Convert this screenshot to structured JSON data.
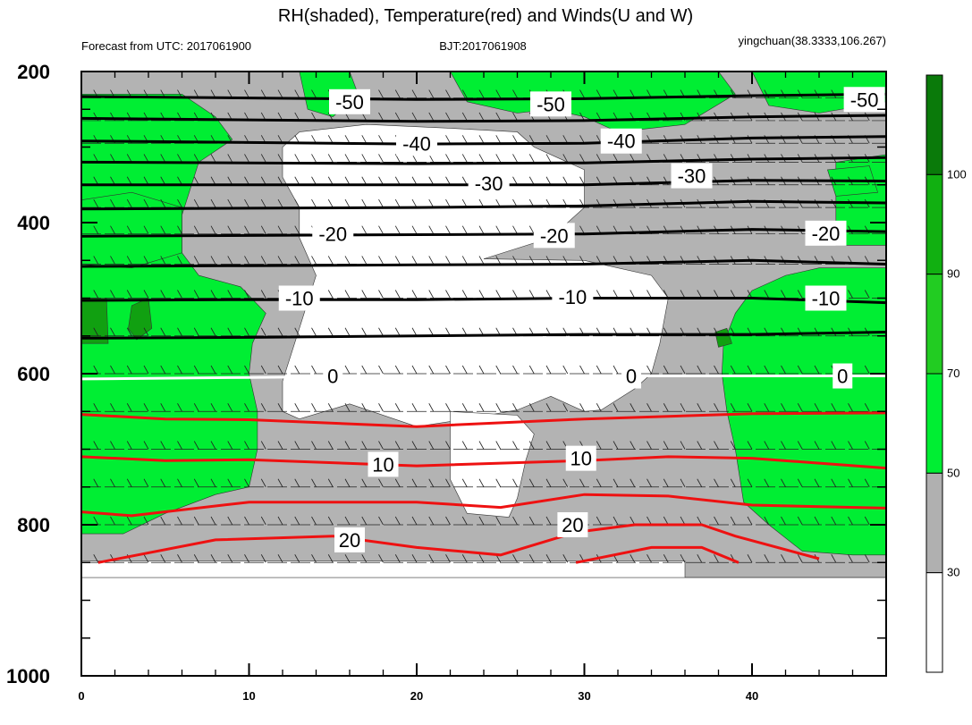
{
  "chart_data": {
    "type": "contour",
    "title": "RH(shaded), Temperature(red) and Winds(U and W)",
    "subtitle_left": "Forecast from UTC: 2017061900",
    "subtitle_center": "BJT:2017061908",
    "subtitle_right": "yingchuan(38.3333,106.267)",
    "x_range": [
      0,
      48
    ],
    "x_ticks": [
      "0",
      "10",
      "20",
      "30",
      "40"
    ],
    "y_range": [
      200,
      1000
    ],
    "y_reversed": true,
    "y_ticks": [
      "200",
      "400",
      "600",
      "800",
      "1000"
    ],
    "grid": false,
    "legend_position": "right",
    "colorbar": {
      "levels": [
        "30",
        "50",
        "70",
        "90",
        "100"
      ],
      "colors": [
        "#ffffff",
        "#b0b0b0",
        "#00ee33",
        "#22cc22",
        "#11b011",
        "#0a7a0a"
      ]
    },
    "temperature_labels": [
      {
        "text": "-50",
        "x": 16,
        "p": 240,
        "color": "#000000"
      },
      {
        "text": "-50",
        "x": 28,
        "p": 243,
        "color": "#000000"
      },
      {
        "text": "-50",
        "x": 46.7,
        "p": 237,
        "color": "#000000"
      },
      {
        "text": "-40",
        "x": 20,
        "p": 295,
        "color": "#000000"
      },
      {
        "text": "-40",
        "x": 32.2,
        "p": 292,
        "color": "#000000"
      },
      {
        "text": "-30",
        "x": 24.3,
        "p": 348,
        "color": "#000000"
      },
      {
        "text": "-30",
        "x": 36.4,
        "p": 338,
        "color": "#000000"
      },
      {
        "text": "-20",
        "x": 15,
        "p": 415,
        "color": "#000000"
      },
      {
        "text": "-20",
        "x": 28.2,
        "p": 417,
        "color": "#000000"
      },
      {
        "text": "-20",
        "x": 44.4,
        "p": 414,
        "color": "#000000"
      },
      {
        "text": "-10",
        "x": 13,
        "p": 500,
        "color": "#000000"
      },
      {
        "text": "-10",
        "x": 29.3,
        "p": 498,
        "color": "#000000"
      },
      {
        "text": "-10",
        "x": 44.4,
        "p": 500,
        "color": "#000000"
      },
      {
        "text": "0",
        "x": 15,
        "p": 603,
        "color": "#000000"
      },
      {
        "text": "0",
        "x": 32.8,
        "p": 603,
        "color": "#000000"
      },
      {
        "text": "0",
        "x": 45.4,
        "p": 603,
        "color": "#000000"
      },
      {
        "text": "10",
        "x": 18,
        "p": 720,
        "color": "#000000"
      },
      {
        "text": "10",
        "x": 29.8,
        "p": 712,
        "color": "#000000"
      },
      {
        "text": "20",
        "x": 16,
        "p": 820,
        "color": "#000000"
      },
      {
        "text": "20",
        "x": 29.3,
        "p": 800,
        "color": "#000000"
      }
    ],
    "isotherms_black": [
      {
        "level": -50,
        "points": [
          [
            0,
            233
          ],
          [
            10,
            235
          ],
          [
            20,
            237
          ],
          [
            30,
            236
          ],
          [
            40,
            232
          ],
          [
            48,
            230
          ]
        ]
      },
      {
        "level": -45,
        "points": [
          [
            0,
            262
          ],
          [
            10,
            264
          ],
          [
            20,
            266
          ],
          [
            30,
            265
          ],
          [
            40,
            260
          ],
          [
            48,
            258
          ]
        ]
      },
      {
        "level": -40,
        "points": [
          [
            0,
            292
          ],
          [
            10,
            294
          ],
          [
            20,
            296
          ],
          [
            30,
            295
          ],
          [
            40,
            288
          ],
          [
            48,
            286
          ]
        ]
      },
      {
        "level": -35,
        "points": [
          [
            0,
            320
          ],
          [
            10,
            321
          ],
          [
            20,
            322
          ],
          [
            30,
            321
          ],
          [
            40,
            316
          ],
          [
            48,
            314
          ]
        ]
      },
      {
        "level": -30,
        "points": [
          [
            0,
            350
          ],
          [
            10,
            350
          ],
          [
            20,
            350
          ],
          [
            30,
            350
          ],
          [
            40,
            344
          ],
          [
            48,
            345
          ]
        ]
      },
      {
        "level": -25,
        "points": [
          [
            0,
            382
          ],
          [
            10,
            381
          ],
          [
            20,
            380
          ],
          [
            30,
            378
          ],
          [
            40,
            372
          ],
          [
            48,
            374
          ]
        ]
      },
      {
        "level": -20,
        "points": [
          [
            0,
            418
          ],
          [
            10,
            417
          ],
          [
            20,
            416
          ],
          [
            30,
            415
          ],
          [
            40,
            409
          ],
          [
            48,
            412
          ]
        ]
      },
      {
        "level": -15,
        "points": [
          [
            0,
            458
          ],
          [
            10,
            457
          ],
          [
            20,
            456
          ],
          [
            30,
            455
          ],
          [
            40,
            450
          ],
          [
            48,
            455
          ]
        ]
      },
      {
        "level": -10,
        "points": [
          [
            0,
            503
          ],
          [
            10,
            502
          ],
          [
            20,
            502
          ],
          [
            30,
            500
          ],
          [
            40,
            500
          ],
          [
            48,
            506
          ]
        ]
      },
      {
        "level": -5,
        "points": [
          [
            0,
            553
          ],
          [
            10,
            552
          ],
          [
            20,
            550
          ],
          [
            30,
            548
          ],
          [
            40,
            548
          ],
          [
            48,
            545
          ]
        ]
      }
    ],
    "isotherm_zero": {
      "level": 0,
      "points": [
        [
          0,
          607
        ],
        [
          10,
          605
        ],
        [
          20,
          603
        ],
        [
          30,
          603
        ],
        [
          40,
          603
        ],
        [
          48,
          603
        ]
      ]
    },
    "isotherms_red": [
      {
        "level": 5,
        "points": [
          [
            0,
            654
          ],
          [
            5,
            660
          ],
          [
            10,
            661
          ],
          [
            20,
            670
          ],
          [
            30,
            660
          ],
          [
            40,
            653
          ],
          [
            48,
            652
          ]
        ]
      },
      {
        "level": 10,
        "points": [
          [
            0,
            710
          ],
          [
            5,
            715
          ],
          [
            10,
            714
          ],
          [
            20,
            722
          ],
          [
            30,
            715
          ],
          [
            35,
            710
          ],
          [
            40,
            712
          ],
          [
            48,
            725
          ]
        ]
      },
      {
        "level": 15,
        "points": [
          [
            0,
            783
          ],
          [
            3,
            788
          ],
          [
            10,
            770
          ],
          [
            20,
            770
          ],
          [
            25,
            777
          ],
          [
            30,
            760
          ],
          [
            35,
            762
          ],
          [
            40,
            774
          ],
          [
            48,
            778
          ]
        ]
      },
      {
        "level": 20,
        "points": [
          [
            1,
            850
          ],
          [
            8,
            820
          ],
          [
            15,
            815
          ],
          [
            20,
            830
          ],
          [
            25,
            840
          ],
          [
            29.5,
            810
          ],
          [
            33,
            800
          ],
          [
            37,
            800
          ],
          [
            39,
            815
          ],
          [
            44,
            845
          ]
        ]
      },
      {
        "level": 25,
        "points": [
          [
            29.5,
            850
          ],
          [
            34,
            830
          ],
          [
            37,
            830
          ],
          [
            39.2,
            850
          ]
        ]
      }
    ],
    "rh_regions": [
      {
        "rh": "gray",
        "points": [
          [
            0,
            200
          ],
          [
            48,
            200
          ],
          [
            48,
            870
          ],
          [
            36,
            870
          ],
          [
            36,
            848
          ],
          [
            0,
            848
          ]
        ]
      },
      {
        "rh": "white",
        "points": [
          [
            13,
            280
          ],
          [
            17,
            270
          ],
          [
            22,
            275
          ],
          [
            26,
            280
          ],
          [
            27,
            300
          ],
          [
            30,
            330
          ],
          [
            30,
            380
          ],
          [
            28,
            420
          ],
          [
            24,
            448
          ],
          [
            30,
            450
          ],
          [
            34,
            470
          ],
          [
            35,
            500
          ],
          [
            34.5,
            560
          ],
          [
            34,
            600
          ],
          [
            33,
            620
          ],
          [
            31,
            648
          ],
          [
            30,
            650
          ],
          [
            28,
            630
          ],
          [
            26,
            648
          ],
          [
            23,
            660
          ],
          [
            20,
            670
          ],
          [
            16,
            640
          ],
          [
            13,
            660
          ],
          [
            12,
            650
          ],
          [
            12,
            610
          ],
          [
            13,
            540
          ],
          [
            14,
            470
          ],
          [
            13,
            420
          ],
          [
            13,
            380
          ],
          [
            12,
            340
          ],
          [
            12,
            300
          ]
        ]
      },
      {
        "rh": "white",
        "points": [
          [
            22,
            650
          ],
          [
            26,
            655
          ],
          [
            27,
            680
          ],
          [
            26.5,
            715
          ],
          [
            26,
            765
          ],
          [
            25.5,
            790
          ],
          [
            23,
            785
          ],
          [
            22,
            740
          ],
          [
            22,
            700
          ]
        ]
      },
      {
        "rh": "white",
        "points": [
          [
            0,
            870
          ],
          [
            48,
            870
          ],
          [
            48,
            1000
          ],
          [
            0,
            1000
          ]
        ]
      },
      {
        "rh": "green",
        "points": [
          [
            0,
            230
          ],
          [
            6,
            230
          ],
          [
            8,
            260
          ],
          [
            9,
            290
          ],
          [
            7,
            320
          ],
          [
            6,
            390
          ],
          [
            6,
            440
          ],
          [
            7,
            470
          ],
          [
            9.5,
            485
          ],
          [
            11,
            520
          ],
          [
            10.2,
            560
          ],
          [
            10,
            600
          ],
          [
            10.5,
            650
          ],
          [
            10.5,
            700
          ],
          [
            10,
            750
          ],
          [
            8,
            760
          ],
          [
            5,
            785
          ],
          [
            2.5,
            812
          ],
          [
            0,
            812
          ]
        ]
      },
      {
        "rh": "green",
        "points": [
          [
            40,
            490
          ],
          [
            42,
            470
          ],
          [
            44,
            460
          ],
          [
            48,
            460
          ],
          [
            48,
            840
          ],
          [
            46,
            840
          ],
          [
            43,
            835
          ],
          [
            41,
            800
          ],
          [
            39.5,
            770
          ],
          [
            39,
            700
          ],
          [
            38.5,
            650
          ],
          [
            38.2,
            600
          ],
          [
            38.3,
            560
          ],
          [
            39,
            520
          ]
        ]
      },
      {
        "rh": "green",
        "points": [
          [
            13,
            200
          ],
          [
            16,
            200
          ],
          [
            16.5,
            230
          ],
          [
            15,
            260
          ],
          [
            13.5,
            250
          ]
        ]
      },
      {
        "rh": "green",
        "points": [
          [
            22,
            200
          ],
          [
            38,
            200
          ],
          [
            39,
            230
          ],
          [
            36,
            270
          ],
          [
            32,
            280
          ],
          [
            30,
            260
          ],
          [
            28,
            250
          ],
          [
            26,
            255
          ],
          [
            23,
            240
          ]
        ]
      },
      {
        "rh": "green",
        "points": [
          [
            40,
            200
          ],
          [
            48,
            200
          ],
          [
            48,
            240
          ],
          [
            44,
            255
          ],
          [
            41,
            245
          ]
        ]
      },
      {
        "rh": "green",
        "points": [
          [
            45,
            320
          ],
          [
            48,
            310
          ],
          [
            48,
            430
          ],
          [
            45,
            430
          ]
        ]
      },
      {
        "rh": "green",
        "points": [
          [
            0,
            370
          ],
          [
            3,
            360
          ],
          [
            6,
            380
          ],
          [
            6,
            440
          ],
          [
            3,
            460
          ],
          [
            0,
            455
          ]
        ]
      },
      {
        "rh": "green",
        "points": [
          [
            44.5,
            330
          ],
          [
            47,
            325
          ],
          [
            47.5,
            360
          ],
          [
            45,
            365
          ]
        ]
      },
      {
        "rh": "dark",
        "points": [
          [
            0,
            500
          ],
          [
            1.5,
            500
          ],
          [
            1.6,
            560
          ],
          [
            0,
            560
          ]
        ]
      },
      {
        "rh": "dark",
        "points": [
          [
            3,
            510
          ],
          [
            4,
            500
          ],
          [
            4.2,
            540
          ],
          [
            3.3,
            555
          ],
          [
            2.8,
            540
          ]
        ]
      },
      {
        "rh": "dark",
        "points": [
          [
            37.8,
            545
          ],
          [
            38.5,
            540
          ],
          [
            38.8,
            560
          ],
          [
            38,
            565
          ]
        ]
      }
    ],
    "wind_levels": [
      200,
      235,
      265,
      295,
      320,
      350,
      380,
      415,
      455,
      500,
      550,
      600,
      650,
      700,
      750,
      800,
      850
    ]
  }
}
